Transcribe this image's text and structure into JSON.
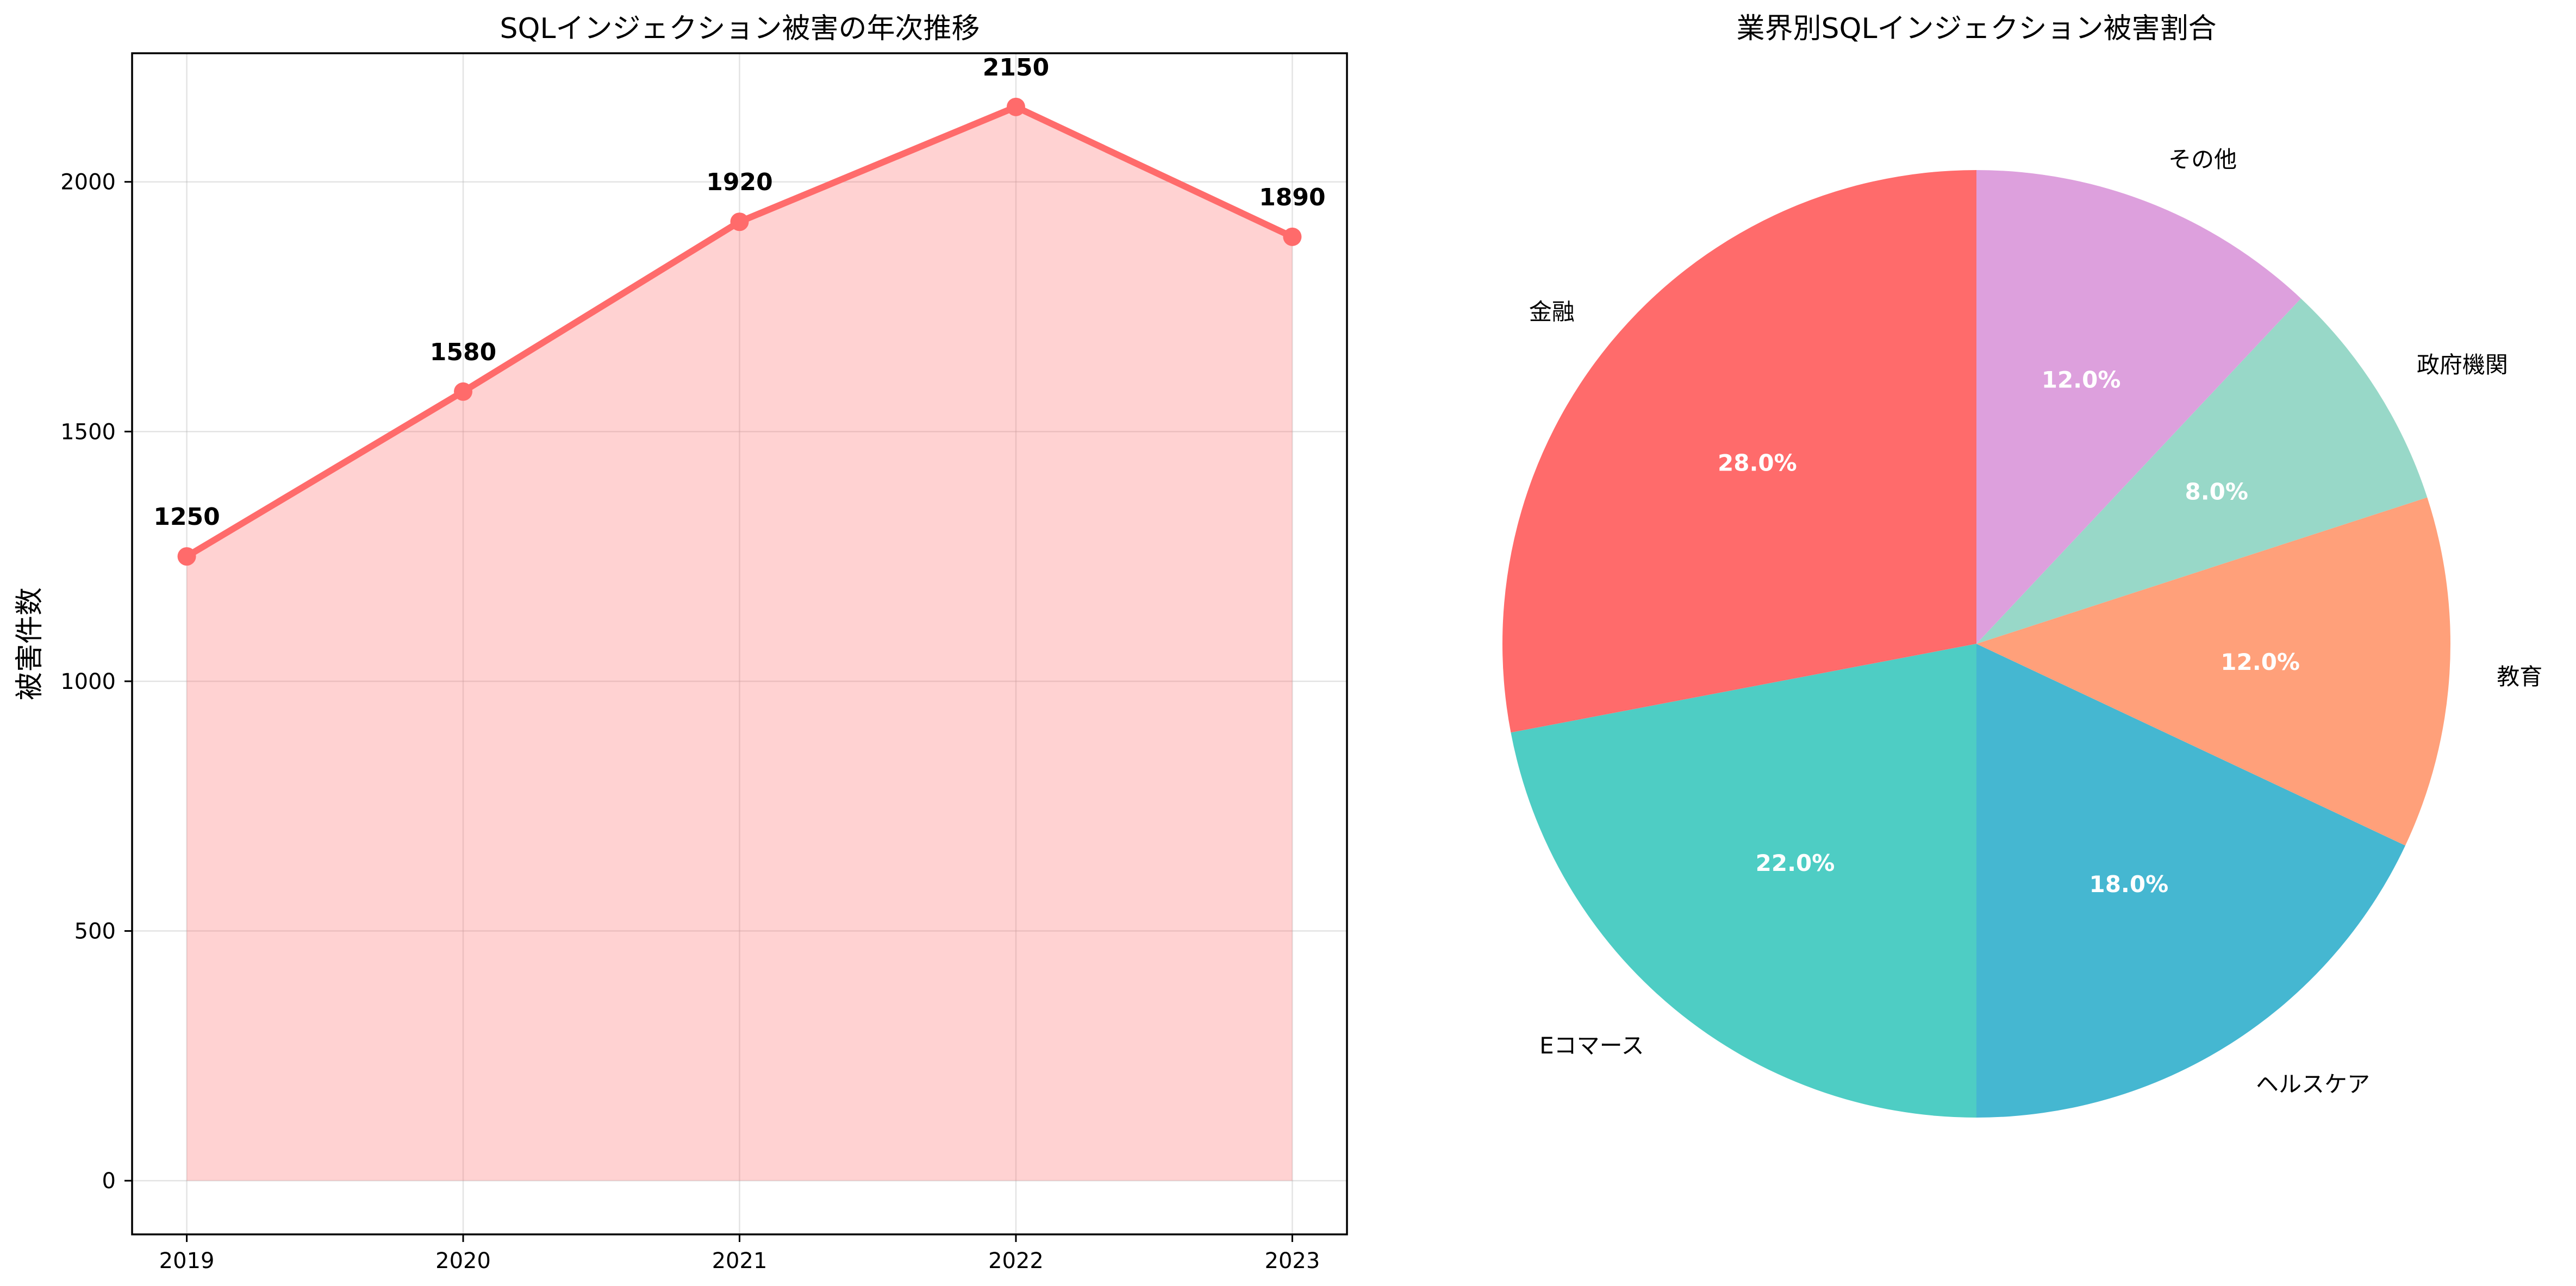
{
  "chart_data": [
    {
      "type": "area",
      "title": "SQLインジェクション被害の年次推移",
      "xlabel": "",
      "ylabel": "被害件数",
      "categories": [
        "2019",
        "2020",
        "2021",
        "2022",
        "2023"
      ],
      "values": [
        1250,
        1580,
        1920,
        2150,
        1890
      ],
      "data_labels": [
        "1250",
        "1580",
        "1920",
        "2150",
        "1890"
      ],
      "ylim": [
        -107.5,
        2257.5
      ],
      "yticks": [
        0,
        500,
        1000,
        1500,
        2000
      ],
      "ytick_labels": [
        "0",
        "500",
        "1000",
        "1500",
        "2000"
      ],
      "grid": true,
      "color": "#ff6b6b"
    },
    {
      "type": "pie",
      "title": "業界別SQLインジェクション被害割合",
      "labels": [
        "金融",
        "Eコマース",
        "ヘルスケア",
        "教育",
        "政府機関",
        "その他"
      ],
      "values": [
        28,
        22,
        18,
        12,
        8,
        12
      ],
      "percent_labels": [
        "28.0%",
        "22.0%",
        "18.0%",
        "12.0%",
        "8.0%",
        "12.0%"
      ],
      "colors": [
        "#ff6b6b",
        "#4ecdc4",
        "#45b7d1",
        "#ffa07a",
        "#98d8c8",
        "#dda0dd"
      ],
      "start_angle": 90,
      "direction": "counterclockwise"
    }
  ]
}
